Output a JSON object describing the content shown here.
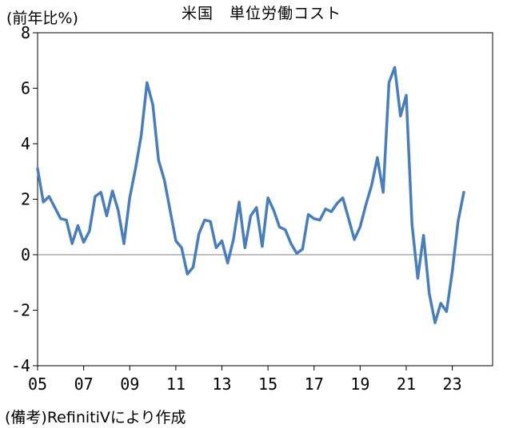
{
  "chart_data": {
    "type": "line",
    "title": "米国　単位労働コスト",
    "unit_label": "(前年比%)",
    "source": "(備考)RefinitiVにより作成",
    "ylim": [
      -4,
      8
    ],
    "y_ticks": [
      "8",
      "6",
      "4",
      "2",
      "0",
      "-2",
      "-4"
    ],
    "y_tick_values": [
      8,
      6,
      4,
      2,
      0,
      -2,
      -4
    ],
    "x_tick_labels": [
      "05",
      "07",
      "09",
      "11",
      "13",
      "15",
      "17",
      "19",
      "21",
      "23"
    ],
    "x_tick_years": [
      2005,
      2007,
      2009,
      2011,
      2013,
      2015,
      2017,
      2019,
      2021,
      2023
    ],
    "xlim": [
      2005,
      2024.75
    ],
    "grid": false,
    "line_color": "#4a7ebb",
    "series": [
      {
        "x": [
          2005.0,
          2005.25,
          2005.5,
          2005.75,
          2006.0,
          2006.25,
          2006.5,
          2006.75,
          2007.0,
          2007.25,
          2007.5,
          2007.75,
          2008.0,
          2008.25,
          2008.5,
          2008.75,
          2009.0,
          2009.25,
          2009.5,
          2009.75,
          2010.0,
          2010.25,
          2010.5,
          2010.75,
          2011.0,
          2011.25,
          2011.5,
          2011.75,
          2012.0,
          2012.25,
          2012.5,
          2012.75,
          2013.0,
          2013.25,
          2013.5,
          2013.75,
          2014.0,
          2014.25,
          2014.5,
          2014.75,
          2015.0,
          2015.25,
          2015.5,
          2015.75,
          2016.0,
          2016.25,
          2016.5,
          2016.75,
          2017.0,
          2017.25,
          2017.5,
          2017.75,
          2018.0,
          2018.25,
          2018.5,
          2018.75,
          2019.0,
          2019.25,
          2019.5,
          2019.75,
          2020.0,
          2020.25,
          2020.5,
          2020.75,
          2021.0,
          2021.25,
          2021.5,
          2021.75,
          2022.0,
          2022.25,
          2022.5,
          2022.75,
          2023.0,
          2023.25,
          2023.5
        ],
        "values": [
          3.1,
          1.9,
          2.1,
          1.7,
          1.3,
          1.25,
          0.4,
          1.05,
          0.45,
          0.85,
          2.1,
          2.25,
          1.4,
          2.3,
          1.6,
          0.4,
          2.05,
          3.1,
          4.3,
          6.2,
          5.4,
          3.4,
          2.7,
          1.6,
          0.5,
          0.25,
          -0.7,
          -0.45,
          0.75,
          1.25,
          1.2,
          0.25,
          0.5,
          -0.3,
          0.55,
          1.9,
          0.25,
          1.4,
          1.7,
          0.3,
          2.05,
          1.6,
          1.0,
          0.9,
          0.4,
          0.05,
          0.2,
          1.45,
          1.3,
          1.25,
          1.65,
          1.55,
          1.85,
          2.05,
          1.3,
          0.55,
          1.0,
          1.8,
          2.5,
          3.5,
          2.25,
          6.2,
          6.75,
          5.0,
          5.75,
          1.1,
          -0.85,
          0.7,
          -1.4,
          -2.45,
          -1.75,
          -2.05,
          -0.6,
          1.2,
          2.25
        ]
      }
    ]
  }
}
